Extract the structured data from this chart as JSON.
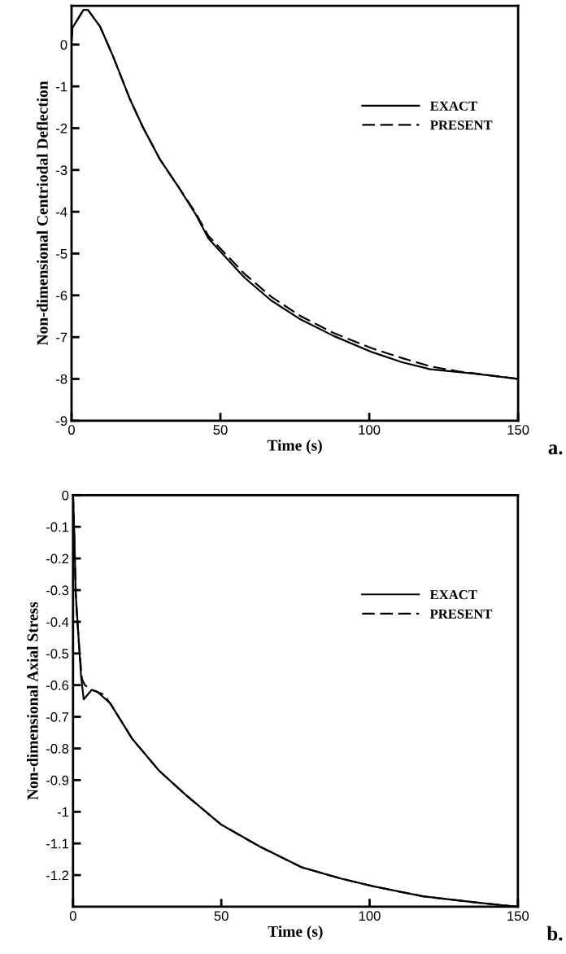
{
  "chart_data": [
    {
      "type": "line",
      "xlabel": "Time (s)",
      "ylabel": "Non-dimensional Centriodal Deflection",
      "xlim": [
        0,
        150
      ],
      "ylim": [
        -9,
        0.93
      ],
      "xticks": [
        0,
        50,
        100,
        150
      ],
      "yticks": [
        0,
        -1,
        -2,
        -3,
        -4,
        -5,
        -6,
        -7,
        -8,
        -9
      ],
      "legend": "top right",
      "grid": false,
      "annotations": [
        "a."
      ],
      "series": [
        {
          "name": "EXACT",
          "color": "#000000",
          "line_style": "solid",
          "x": [
            0,
            0.3,
            4,
            5.5,
            9.6,
            14,
            19.7,
            24,
            29.8,
            35.3,
            41.6,
            46,
            51.5,
            58,
            67,
            77,
            88,
            101,
            111,
            120.5,
            135,
            150
          ],
          "values": [
            0.1,
            0.4,
            0.83,
            0.83,
            0.43,
            -0.29,
            -1.32,
            -1.98,
            -2.76,
            -3.34,
            -4.05,
            -4.64,
            -5.07,
            -5.57,
            -6.12,
            -6.58,
            -6.97,
            -7.36,
            -7.6,
            -7.77,
            -7.87,
            -8.0
          ]
        },
        {
          "name": "PRESENT",
          "color": "#000000",
          "line_style": "dashed",
          "x": [
            0,
            0.3,
            4,
            5.5,
            9.6,
            14,
            19.7,
            24,
            29.8,
            35.3,
            41.6,
            46,
            58,
            67,
            77,
            88,
            101,
            111,
            120.5,
            130,
            150
          ],
          "values": [
            0.1,
            0.4,
            0.83,
            0.83,
            0.43,
            -0.29,
            -1.32,
            -1.98,
            -2.76,
            -3.34,
            -4.02,
            -4.58,
            -5.48,
            -6.03,
            -6.5,
            -6.9,
            -7.27,
            -7.5,
            -7.7,
            -7.82,
            -8.0
          ]
        }
      ]
    },
    {
      "type": "line",
      "xlabel": "Time (s)",
      "ylabel": "Non-dimensional Axial Stress",
      "xlim": [
        0,
        150
      ],
      "ylim": [
        -1.3,
        0
      ],
      "xticks": [
        0,
        50,
        100,
        150
      ],
      "yticks": [
        0,
        -0.1,
        -0.2,
        -0.3,
        -0.4,
        -0.5,
        -0.6,
        -0.7,
        -0.8,
        -0.9,
        -1,
        -1.1,
        -1.2
      ],
      "legend": "top right",
      "grid": false,
      "annotations": [
        "b."
      ],
      "series": [
        {
          "name": "EXACT",
          "color": "#000000",
          "line_style": "solid",
          "x": [
            0,
            0.5,
            0.9,
            1.8,
            2.7,
            3.6,
            6.3,
            8.1,
            12.8,
            13.7,
            20,
            29,
            37.8,
            49.9,
            63,
            77,
            90,
            101,
            118,
            134.5,
            150
          ],
          "values": [
            0,
            -0.14,
            -0.31,
            -0.44,
            -0.57,
            -0.645,
            -0.615,
            -0.62,
            -0.66,
            -0.675,
            -0.77,
            -0.87,
            -0.945,
            -1.04,
            -1.11,
            -1.175,
            -1.21,
            -1.235,
            -1.267,
            -1.285,
            -1.3
          ]
        },
        {
          "name": "PRESENT",
          "color": "#000000",
          "line_style": "dashed",
          "x": [
            0,
            0.5,
            1,
            2,
            3,
            4,
            6.3,
            10.5,
            13.7,
            20,
            29,
            37.8,
            49.9,
            63,
            77,
            90,
            101,
            118,
            134.5,
            150
          ],
          "values": [
            0,
            -0.16,
            -0.33,
            -0.47,
            -0.58,
            -0.6,
            -0.615,
            -0.63,
            -0.675,
            -0.77,
            -0.87,
            -0.945,
            -1.04,
            -1.11,
            -1.175,
            -1.21,
            -1.235,
            -1.267,
            -1.285,
            -1.3
          ]
        }
      ]
    }
  ]
}
